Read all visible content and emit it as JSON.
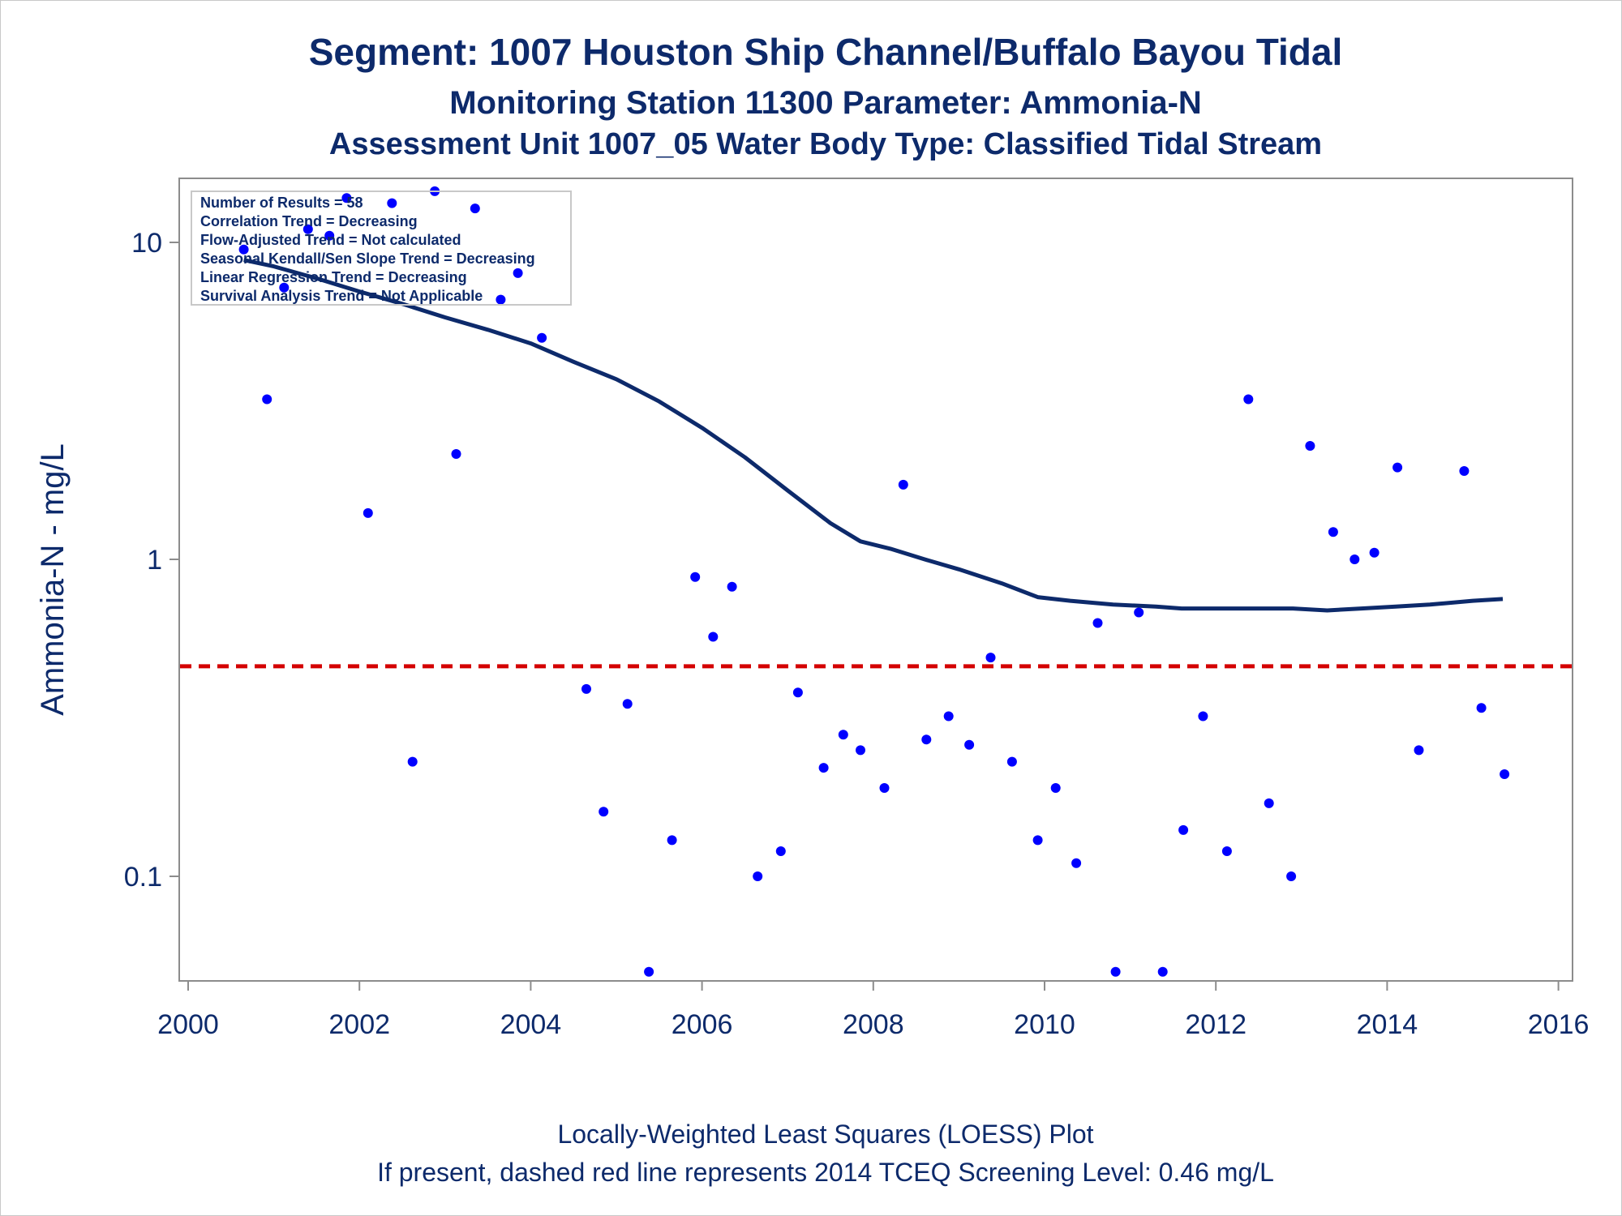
{
  "chart_data": {
    "type": "scatter",
    "title": "Segment: 1007  Houston Ship Channel/Buffalo Bayou Tidal",
    "subtitle": "Monitoring Station 11300 Parameter: Ammonia-N",
    "subtitle2": "Assessment Unit 1007_05   Water Body Type: Classified Tidal Stream",
    "xlabel": "",
    "ylabel": "Ammonia-N - mg/L",
    "yscale": "log",
    "xlim": [
      2000,
      2016
    ],
    "ylim": [
      0.05,
      16
    ],
    "xticks": [
      "2000",
      "2002",
      "2004",
      "2006",
      "2008",
      "2010",
      "2012",
      "2014",
      "2016"
    ],
    "yticks": [
      "0.1",
      "1",
      "10"
    ],
    "grid": false,
    "legend_position": "top-left",
    "annotations": [
      "Number of Results = 58",
      "Correlation Trend = Decreasing",
      "Flow-Adjusted Trend = Not calculated",
      "Seasonal Kendall/Sen Slope Trend = Decreasing",
      "Linear Regression Trend = Decreasing",
      "Survival Analysis Trend = Not Applicable"
    ],
    "footnotes": [
      "Locally-Weighted Least Squares (LOESS) Plot",
      "If present, dashed red line represents 2014 TCEQ Screening Level: 0.46 mg/L"
    ],
    "screening_level": 0.46,
    "colors": {
      "points": "#0000ff",
      "loess": "#0d2a6b",
      "screening": "#d40000",
      "text": "#0d2a6b"
    },
    "series": [
      {
        "type": "scatter",
        "x": [
          2000.65,
          2000.92,
          2001.12,
          2001.4,
          2001.65,
          2001.85,
          2002.1,
          2002.38,
          2002.62,
          2002.88,
          2003.13,
          2003.35,
          2003.65,
          2003.85,
          2004.13,
          2004.65,
          2004.85,
          2005.13,
          2005.38,
          2005.65,
          2005.92,
          2006.13,
          2006.35,
          2006.65,
          2006.92,
          2007.12,
          2007.42,
          2007.65,
          2007.85,
          2008.13,
          2008.35,
          2008.62,
          2008.88,
          2009.12,
          2009.37,
          2009.62,
          2009.92,
          2010.13,
          2010.37,
          2010.62,
          2010.83,
          2011.1,
          2011.38,
          2011.62,
          2011.85,
          2012.13,
          2012.38,
          2012.62,
          2012.88,
          2013.1,
          2013.37,
          2013.62,
          2013.85,
          2014.12,
          2014.37,
          2014.9,
          2015.1,
          2015.37
        ],
        "y": [
          9.5,
          3.2,
          7.2,
          11.0,
          10.5,
          13.8,
          1.4,
          13.3,
          0.23,
          14.5,
          2.15,
          12.8,
          6.6,
          8.0,
          5.0,
          0.39,
          0.16,
          0.35,
          0.05,
          0.13,
          0.88,
          0.57,
          0.82,
          0.1,
          0.12,
          0.38,
          0.22,
          0.28,
          0.25,
          0.19,
          1.72,
          0.27,
          0.32,
          0.26,
          0.49,
          0.23,
          0.13,
          0.19,
          0.11,
          0.63,
          0.05,
          0.68,
          0.05,
          0.14,
          0.32,
          0.12,
          3.2,
          0.17,
          0.1,
          2.28,
          1.22,
          1.0,
          1.05,
          1.95,
          0.25,
          1.9,
          0.34,
          0.21
        ]
      },
      {
        "type": "line",
        "x": [
          2000.65,
          2001.0,
          2001.5,
          2002.0,
          2002.5,
          2003.0,
          2003.5,
          2004.0,
          2004.5,
          2005.0,
          2005.5,
          2006.0,
          2006.5,
          2007.0,
          2007.5,
          2007.85,
          2008.2,
          2008.6,
          2009.0,
          2009.5,
          2009.92,
          2010.3,
          2010.8,
          2011.3,
          2011.6,
          2012.0,
          2012.5,
          2012.9,
          2013.3,
          2013.7,
          2014.1,
          2014.5,
          2015.0,
          2015.35
        ],
        "y": [
          8.8,
          8.4,
          7.7,
          7.0,
          6.4,
          5.8,
          5.3,
          4.8,
          4.2,
          3.7,
          3.15,
          2.6,
          2.1,
          1.65,
          1.3,
          1.14,
          1.08,
          1.0,
          0.93,
          0.84,
          0.76,
          0.74,
          0.72,
          0.71,
          0.7,
          0.7,
          0.7,
          0.7,
          0.69,
          0.7,
          0.71,
          0.72,
          0.74,
          0.75
        ]
      }
    ]
  }
}
